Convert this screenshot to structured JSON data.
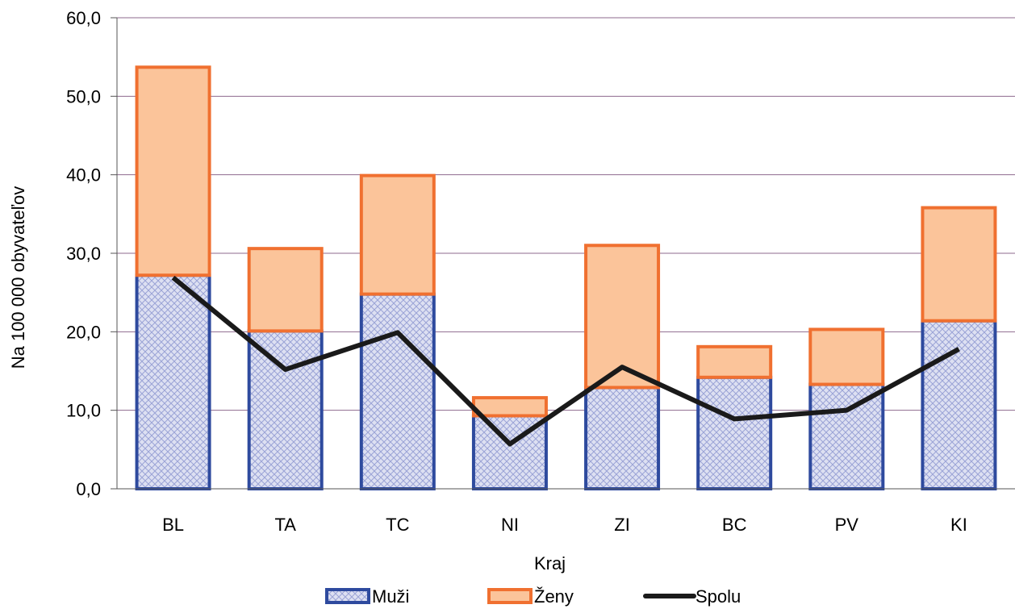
{
  "chart_data": {
    "type": "bar",
    "stacked": true,
    "categories": [
      "BL",
      "TA",
      "TC",
      "NI",
      "ZI",
      "BC",
      "PV",
      "KI"
    ],
    "series": [
      {
        "name": "Muži",
        "kind": "bar",
        "pattern": "crosshatch",
        "color": "#2E4A9E",
        "fill": "#DDE0F2",
        "values": [
          27.2,
          20.1,
          24.8,
          9.3,
          12.9,
          14.2,
          13.3,
          21.4
        ]
      },
      {
        "name": "Ženy",
        "kind": "bar",
        "color": "#F07030",
        "fill": "#FBC49A",
        "values": [
          26.5,
          10.5,
          15.1,
          2.3,
          18.1,
          3.9,
          7.0,
          14.4
        ]
      },
      {
        "name": "Spolu",
        "kind": "line",
        "color": "#1A1A1A",
        "values": [
          26.9,
          15.2,
          19.9,
          5.7,
          15.5,
          8.9,
          10.0,
          17.8
        ]
      }
    ],
    "xlabel": "Kraj",
    "ylabel": "Na 100 000 obyvateľov",
    "ylim": [
      0,
      60
    ],
    "yticks": [
      "0,0",
      "10,0",
      "20,0",
      "30,0",
      "40,0",
      "50,0",
      "60,0"
    ],
    "grid": true,
    "gridColor": "#8E6A8E",
    "legend_position": "bottom"
  }
}
